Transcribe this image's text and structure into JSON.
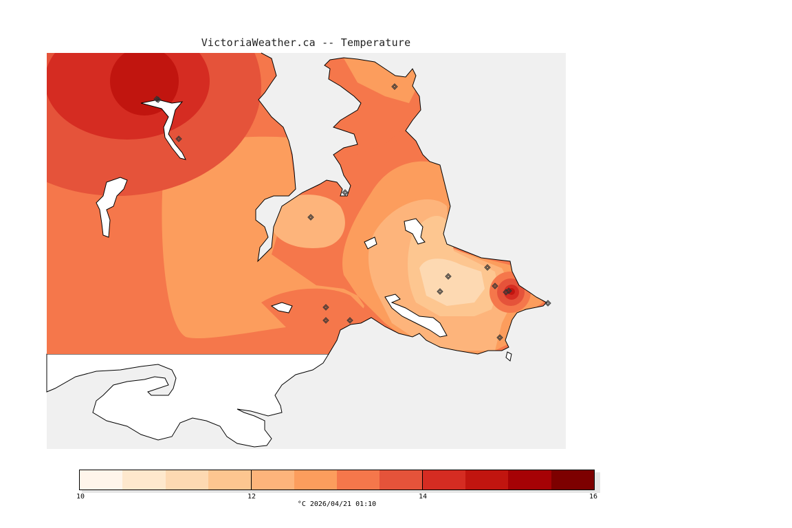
{
  "title": "VictoriaWeather.ca -- Temperature",
  "colorbar": {
    "min_label": "10",
    "labels": [
      "10",
      "12",
      "14",
      "16"
    ],
    "label_values": [
      10,
      12,
      14,
      16
    ],
    "colors": [
      "#fff5eb",
      "#fee8cd",
      "#fdd9b2",
      "#fdc690",
      "#fdb47b",
      "#fc9d5d",
      "#f5774b",
      "#e5533a",
      "#d52c22",
      "#c1150f",
      "#a60205",
      "#7d0000"
    ],
    "caption": "°C  2026/04/21 01:10"
  },
  "map": {
    "background_color": "#f0f0f0",
    "water_color": "#ffffff",
    "stations": 17
  }
}
